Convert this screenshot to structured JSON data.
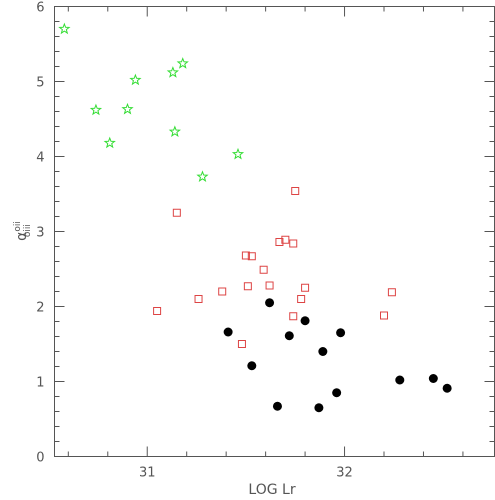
{
  "chart_data": {
    "type": "scatter",
    "xlabel": "LOG Lr",
    "ylabel": "α",
    "ylabel_sup": "oii",
    "ylabel_sub": "oiii",
    "xlim": [
      30.53,
      32.76
    ],
    "ylim": [
      0,
      6
    ],
    "x_ticks_labeled": [
      31,
      32
    ],
    "y_ticks_labeled": [
      0,
      1,
      2,
      3,
      4,
      5,
      6
    ],
    "grid": false,
    "series": [
      {
        "marker": "star",
        "color": "#33dd33",
        "points": [
          [
            30.58,
            5.7
          ],
          [
            30.74,
            4.62
          ],
          [
            30.81,
            4.18
          ],
          [
            30.9,
            4.63
          ],
          [
            30.94,
            5.02
          ],
          [
            31.13,
            5.12
          ],
          [
            31.14,
            4.33
          ],
          [
            31.18,
            5.24
          ],
          [
            31.28,
            3.73
          ],
          [
            31.46,
            4.03
          ]
        ]
      },
      {
        "marker": "open-square",
        "color": "#dd4444",
        "points": [
          [
            31.05,
            1.94
          ],
          [
            31.15,
            3.25
          ],
          [
            31.26,
            2.1
          ],
          [
            31.38,
            2.2
          ],
          [
            31.48,
            1.5
          ],
          [
            31.5,
            2.68
          ],
          [
            31.51,
            2.27
          ],
          [
            31.53,
            2.67
          ],
          [
            31.59,
            2.49
          ],
          [
            31.62,
            2.28
          ],
          [
            31.67,
            2.86
          ],
          [
            31.7,
            2.89
          ],
          [
            31.74,
            1.87
          ],
          [
            31.74,
            2.84
          ],
          [
            31.75,
            3.54
          ],
          [
            31.78,
            2.1
          ],
          [
            31.8,
            2.25
          ],
          [
            32.2,
            1.88
          ],
          [
            32.24,
            2.19
          ]
        ]
      },
      {
        "marker": "filled-circle",
        "color": "#000000",
        "points": [
          [
            31.41,
            1.66
          ],
          [
            31.53,
            1.21
          ],
          [
            31.62,
            2.05
          ],
          [
            31.66,
            0.67
          ],
          [
            31.72,
            1.61
          ],
          [
            31.8,
            1.81
          ],
          [
            31.87,
            0.65
          ],
          [
            31.89,
            1.4
          ],
          [
            31.96,
            0.85
          ],
          [
            31.98,
            1.65
          ],
          [
            32.28,
            1.02
          ],
          [
            32.45,
            1.04
          ],
          [
            32.52,
            0.91
          ]
        ]
      }
    ]
  }
}
